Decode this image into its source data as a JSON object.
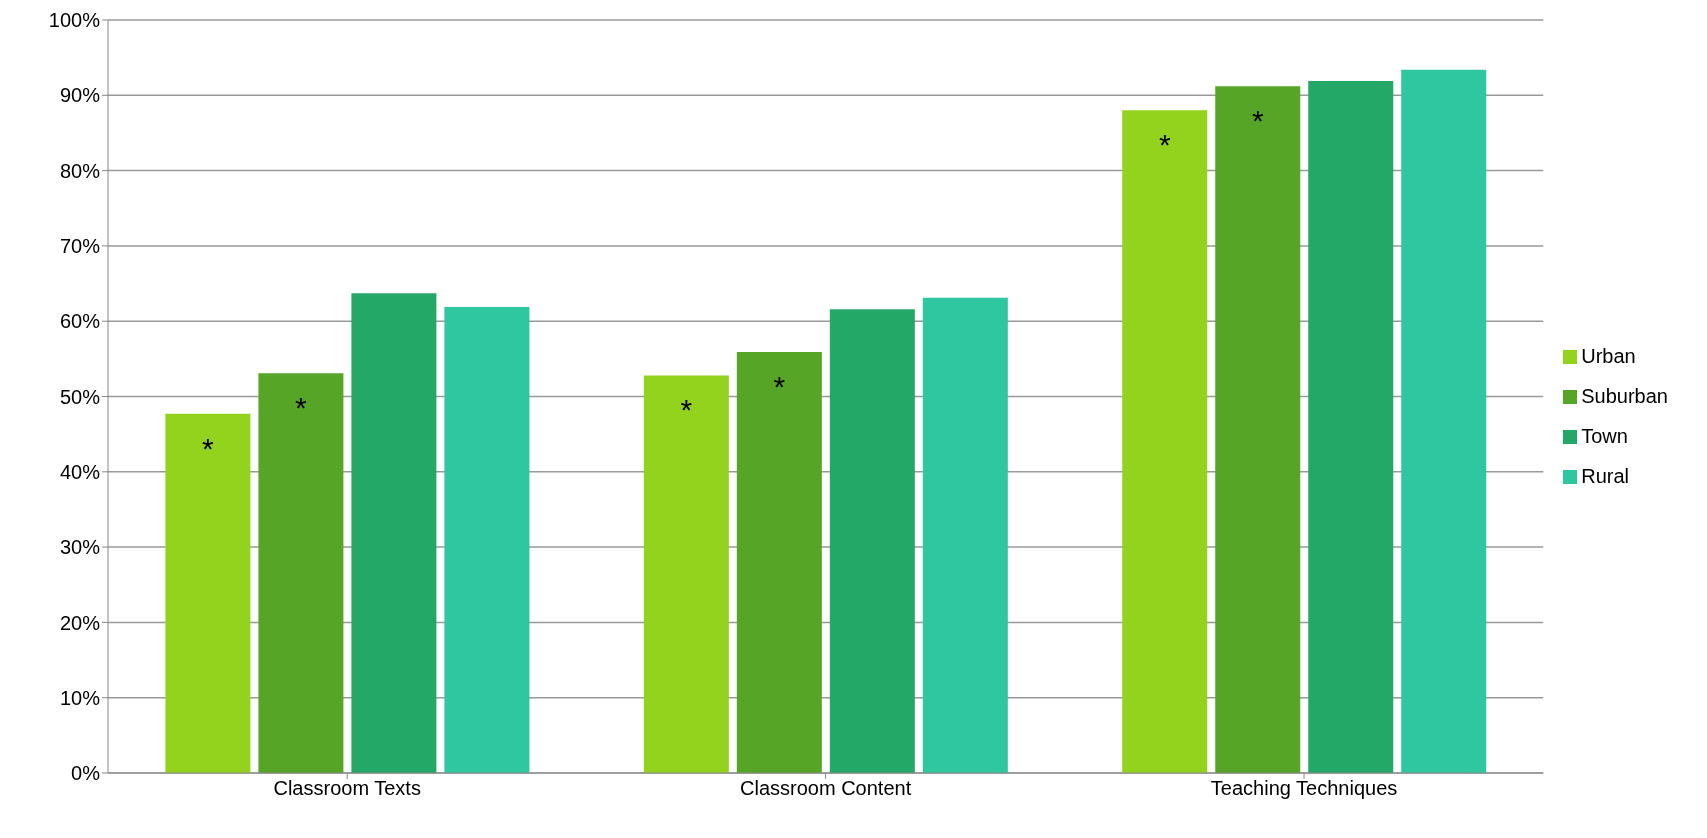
{
  "chart_data": {
    "type": "bar",
    "categories": [
      "Classroom Texts",
      "Classroom Content",
      "Teaching Techniques"
    ],
    "series": [
      {
        "name": "Urban",
        "color": "#93d31e",
        "values": [
          47.7,
          52.8,
          88.0
        ]
      },
      {
        "name": "Suburban",
        "color": "#56a527",
        "values": [
          53.1,
          55.9,
          91.2
        ]
      },
      {
        "name": "Town",
        "color": "#23a868",
        "values": [
          63.7,
          61.6,
          91.9
        ]
      },
      {
        "name": "Rural",
        "color": "#2ec7a0",
        "values": [
          61.9,
          63.1,
          93.4
        ]
      }
    ],
    "ylim": [
      0,
      100
    ],
    "yticks": [
      {
        "value": 0,
        "label": "0%"
      },
      {
        "value": 10,
        "label": "10%"
      },
      {
        "value": 20,
        "label": "20%"
      },
      {
        "value": 30,
        "label": "30%"
      },
      {
        "value": 40,
        "label": "40%"
      },
      {
        "value": 50,
        "label": "50%"
      },
      {
        "value": 60,
        "label": "60%"
      },
      {
        "value": 70,
        "label": "70%"
      },
      {
        "value": 80,
        "label": "80%"
      },
      {
        "value": 90,
        "label": "90%"
      },
      {
        "value": 100,
        "label": "100%"
      }
    ],
    "grid": "y",
    "legend": "right",
    "annotations": [
      "*",
      "*",
      "*",
      {
        "text": "*",
        "x": "Classroom Texts",
        "y": 53.1
      },
      {
        "text": "*",
        "x": "Classroom Content",
        "y": 55.9
      },
      {
        "text": "*",
        "x": "Teaching Techniques",
        "y": 91.2
      }
    ]
  }
}
